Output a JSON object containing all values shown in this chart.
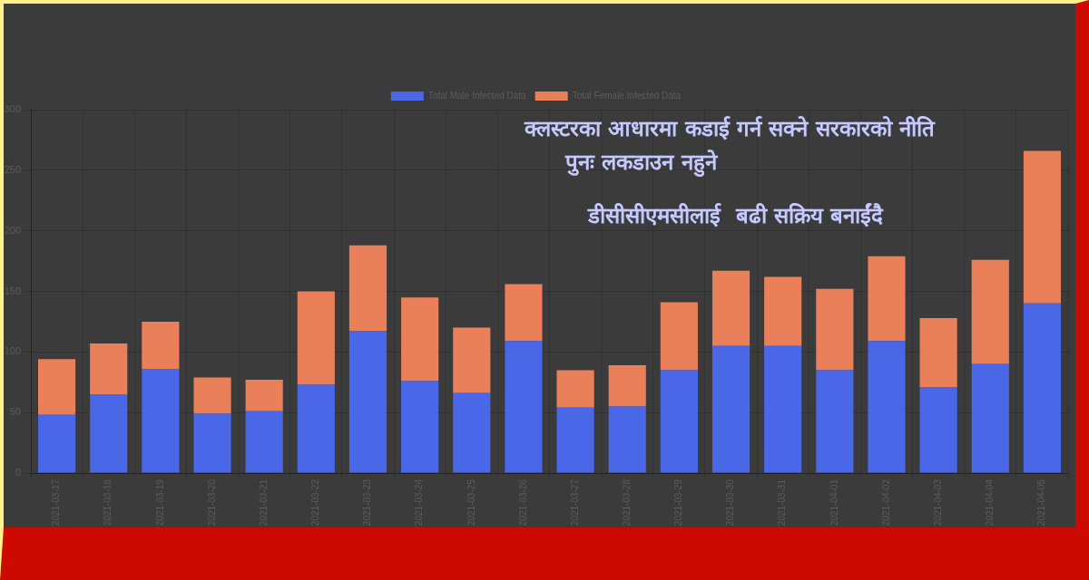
{
  "chart_data": {
    "type": "bar",
    "stacked": true,
    "categories": [
      "2021-03-17",
      "2021-03-18",
      "2021-03-19",
      "2021-03-20",
      "2021-03-21",
      "2021-03-22",
      "2021-03-23",
      "2021-03-24",
      "2021-03-25",
      "2021-03-26",
      "2021-03-27",
      "2021-03-28",
      "2021-03-29",
      "2021-03-30",
      "2021-03-31",
      "2021-04-01",
      "2021-04-02",
      "2021-04-03",
      "2021-04-04",
      "2021-04-05"
    ],
    "series": [
      {
        "name": "Total Male Infected Data",
        "color": "#4a67e8",
        "values": [
          48,
          65,
          86,
          49,
          51,
          73,
          117,
          76,
          66,
          109,
          54,
          55,
          85,
          105,
          105,
          85,
          109,
          71,
          90,
          140
        ]
      },
      {
        "name": "Total Female Infected Data",
        "color": "#e9805a",
        "values": [
          46,
          42,
          39,
          30,
          26,
          77,
          71,
          69,
          54,
          47,
          31,
          34,
          56,
          62,
          57,
          67,
          70,
          57,
          86,
          126
        ]
      }
    ],
    "ylim": [
      0,
      300
    ],
    "yticks": [
      0,
      50,
      100,
      150,
      200,
      250,
      300
    ],
    "grid": true,
    "legend": "top",
    "annotations": [
      "क्लस्टरका आधारमा कडाई गर्न सक्ने सरकारको नीति",
      "पुनः लकडाउन नहुने",
      "डीसीसीएमसीलाई  बढी सक्रिय बनाईंदै"
    ]
  }
}
